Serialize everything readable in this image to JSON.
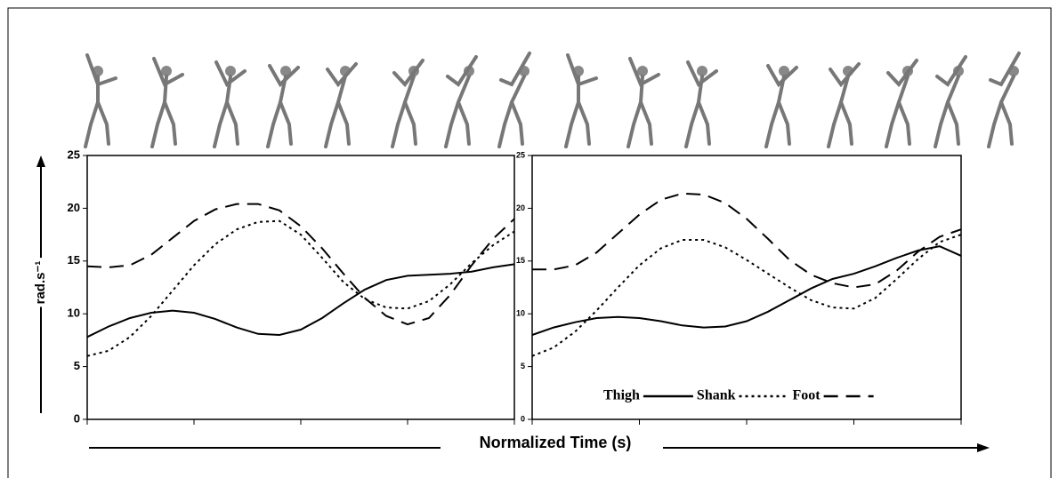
{
  "chart_data": [
    {
      "type": "line",
      "y_label": "rad.s⁻¹",
      "x_label": "Normalized Time (s)",
      "x": [
        0,
        5,
        10,
        15,
        20,
        25,
        30,
        35,
        40,
        45,
        50,
        55,
        60,
        65,
        70,
        75,
        80,
        85,
        90,
        95,
        100
      ],
      "xlim": [
        0,
        100
      ],
      "ylim": [
        0,
        25
      ],
      "yticks": [
        0,
        5,
        10,
        15,
        20,
        25
      ],
      "series": [
        {
          "color": "#000000",
          "dash": "solid",
          "values": [
            7.8,
            8.8,
            9.6,
            10.1,
            10.3,
            10.1,
            9.5,
            8.7,
            8.1,
            8.0,
            8.5,
            9.6,
            11.0,
            12.3,
            13.2,
            13.6,
            13.7,
            13.8,
            14.0,
            14.4,
            14.7
          ]
        },
        {
          "color": "#000000",
          "dash": "dotted",
          "values": [
            6.0,
            6.5,
            7.8,
            9.8,
            12.2,
            14.6,
            16.6,
            18.0,
            18.7,
            18.8,
            17.5,
            15.3,
            13.0,
            11.4,
            10.6,
            10.5,
            11.2,
            12.8,
            14.8,
            16.5,
            17.8
          ]
        },
        {
          "color": "#000000",
          "dash": "dashed",
          "values": [
            14.5,
            14.4,
            14.6,
            15.6,
            17.2,
            18.8,
            19.9,
            20.4,
            20.4,
            19.8,
            18.3,
            16.2,
            13.8,
            11.5,
            9.8,
            9.0,
            9.6,
            11.8,
            14.6,
            17.1,
            19.0
          ]
        }
      ]
    },
    {
      "type": "line",
      "legend": "bottom",
      "x": [
        0,
        5,
        10,
        15,
        20,
        25,
        30,
        35,
        40,
        45,
        50,
        55,
        60,
        65,
        70,
        75,
        80,
        85,
        90,
        95,
        100
      ],
      "xlim": [
        0,
        100
      ],
      "ylim": [
        0,
        25
      ],
      "yticks": [
        0,
        5,
        10,
        15,
        20,
        25
      ],
      "series": [
        {
          "name": "Thigh",
          "color": "#000000",
          "dash": "solid",
          "values": [
            8.0,
            8.7,
            9.2,
            9.6,
            9.7,
            9.6,
            9.3,
            8.9,
            8.7,
            8.8,
            9.3,
            10.2,
            11.3,
            12.4,
            13.3,
            13.8,
            14.5,
            15.3,
            16.0,
            16.4,
            15.5
          ]
        },
        {
          "name": "Shank",
          "color": "#000000",
          "dash": "dotted",
          "values": [
            6.0,
            6.8,
            8.3,
            10.3,
            12.5,
            14.6,
            16.2,
            17.0,
            17.0,
            16.3,
            15.1,
            13.8,
            12.5,
            11.3,
            10.6,
            10.5,
            11.5,
            13.3,
            15.2,
            16.8,
            17.5
          ]
        },
        {
          "name": "Foot",
          "color": "#000000",
          "dash": "dashed",
          "values": [
            14.2,
            14.2,
            14.6,
            15.8,
            17.6,
            19.4,
            20.8,
            21.4,
            21.3,
            20.5,
            19.0,
            17.1,
            15.1,
            13.7,
            12.9,
            12.5,
            12.8,
            14.1,
            15.9,
            17.3,
            18.0
          ]
        }
      ]
    }
  ]
}
